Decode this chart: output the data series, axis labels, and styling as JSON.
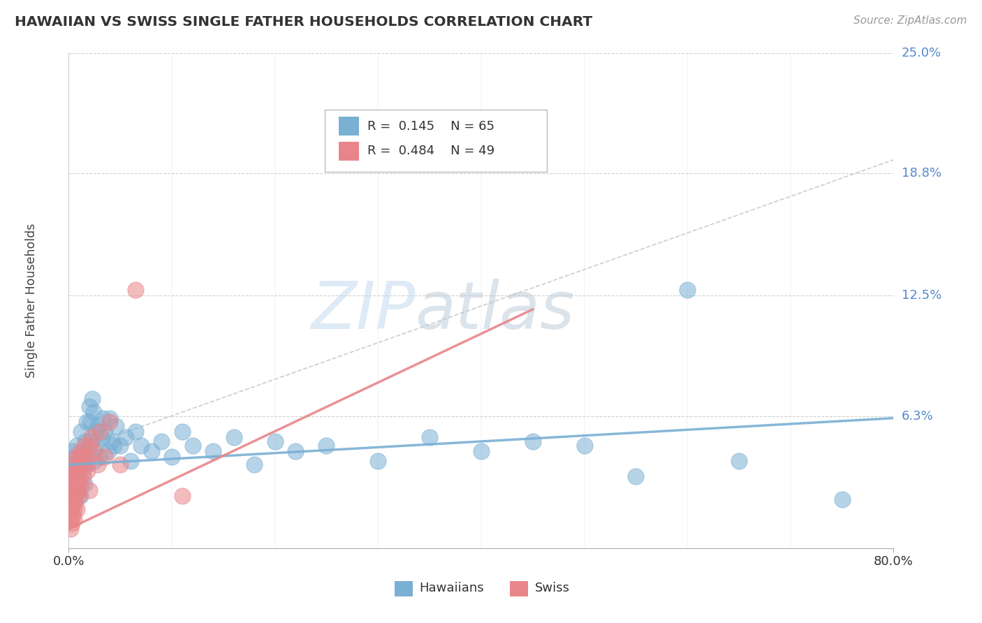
{
  "title": "HAWAIIAN VS SWISS SINGLE FATHER HOUSEHOLDS CORRELATION CHART",
  "source": "Source: ZipAtlas.com",
  "ylabel": "Single Father Households",
  "xlim": [
    0.0,
    0.8
  ],
  "ylim": [
    -0.005,
    0.25
  ],
  "ytick_vals": [
    0.0,
    0.063,
    0.125,
    0.188,
    0.25
  ],
  "ytick_labels": [
    "",
    "6.3%",
    "12.5%",
    "18.8%",
    "25.0%"
  ],
  "xtick_vals": [
    0.0,
    0.8
  ],
  "xtick_labels": [
    "0.0%",
    "80.0%"
  ],
  "hawaiian_color": "#7ab0d4",
  "swiss_color": "#e8858a",
  "hawaiian_R": 0.145,
  "hawaiian_N": 65,
  "swiss_R": 0.484,
  "swiss_N": 49,
  "background_color": "#ffffff",
  "grid_color": "#d0d0d0",
  "hawaiian_points": [
    [
      0.002,
      0.038
    ],
    [
      0.003,
      0.028
    ],
    [
      0.004,
      0.045
    ],
    [
      0.005,
      0.032
    ],
    [
      0.006,
      0.02
    ],
    [
      0.006,
      0.042
    ],
    [
      0.007,
      0.038
    ],
    [
      0.008,
      0.035
    ],
    [
      0.008,
      0.048
    ],
    [
      0.009,
      0.025
    ],
    [
      0.01,
      0.03
    ],
    [
      0.01,
      0.04
    ],
    [
      0.011,
      0.022
    ],
    [
      0.012,
      0.055
    ],
    [
      0.012,
      0.042
    ],
    [
      0.013,
      0.035
    ],
    [
      0.014,
      0.038
    ],
    [
      0.015,
      0.045
    ],
    [
      0.015,
      0.028
    ],
    [
      0.016,
      0.05
    ],
    [
      0.017,
      0.06
    ],
    [
      0.018,
      0.038
    ],
    [
      0.02,
      0.068
    ],
    [
      0.021,
      0.06
    ],
    [
      0.022,
      0.05
    ],
    [
      0.023,
      0.072
    ],
    [
      0.024,
      0.065
    ],
    [
      0.025,
      0.04
    ],
    [
      0.026,
      0.055
    ],
    [
      0.027,
      0.048
    ],
    [
      0.028,
      0.058
    ],
    [
      0.03,
      0.042
    ],
    [
      0.032,
      0.052
    ],
    [
      0.033,
      0.062
    ],
    [
      0.035,
      0.055
    ],
    [
      0.038,
      0.045
    ],
    [
      0.04,
      0.062
    ],
    [
      0.042,
      0.05
    ],
    [
      0.044,
      0.048
    ],
    [
      0.046,
      0.058
    ],
    [
      0.05,
      0.048
    ],
    [
      0.055,
      0.052
    ],
    [
      0.06,
      0.04
    ],
    [
      0.065,
      0.055
    ],
    [
      0.07,
      0.048
    ],
    [
      0.08,
      0.045
    ],
    [
      0.09,
      0.05
    ],
    [
      0.1,
      0.042
    ],
    [
      0.11,
      0.055
    ],
    [
      0.12,
      0.048
    ],
    [
      0.14,
      0.045
    ],
    [
      0.16,
      0.052
    ],
    [
      0.18,
      0.038
    ],
    [
      0.2,
      0.05
    ],
    [
      0.22,
      0.045
    ],
    [
      0.25,
      0.048
    ],
    [
      0.3,
      0.04
    ],
    [
      0.35,
      0.052
    ],
    [
      0.4,
      0.045
    ],
    [
      0.45,
      0.05
    ],
    [
      0.5,
      0.048
    ],
    [
      0.55,
      0.032
    ],
    [
      0.6,
      0.128
    ],
    [
      0.65,
      0.04
    ],
    [
      0.75,
      0.02
    ]
  ],
  "swiss_points": [
    [
      0.001,
      0.01
    ],
    [
      0.001,
      0.02
    ],
    [
      0.002,
      0.015
    ],
    [
      0.002,
      0.025
    ],
    [
      0.002,
      0.005
    ],
    [
      0.003,
      0.018
    ],
    [
      0.003,
      0.028
    ],
    [
      0.003,
      0.008
    ],
    [
      0.004,
      0.022
    ],
    [
      0.004,
      0.032
    ],
    [
      0.004,
      0.012
    ],
    [
      0.005,
      0.025
    ],
    [
      0.005,
      0.035
    ],
    [
      0.005,
      0.015
    ],
    [
      0.005,
      0.01
    ],
    [
      0.006,
      0.028
    ],
    [
      0.006,
      0.018
    ],
    [
      0.006,
      0.038
    ],
    [
      0.007,
      0.032
    ],
    [
      0.007,
      0.022
    ],
    [
      0.007,
      0.042
    ],
    [
      0.008,
      0.035
    ],
    [
      0.008,
      0.025
    ],
    [
      0.008,
      0.015
    ],
    [
      0.009,
      0.038
    ],
    [
      0.009,
      0.028
    ],
    [
      0.01,
      0.042
    ],
    [
      0.01,
      0.032
    ],
    [
      0.01,
      0.022
    ],
    [
      0.011,
      0.045
    ],
    [
      0.012,
      0.038
    ],
    [
      0.012,
      0.028
    ],
    [
      0.013,
      0.042
    ],
    [
      0.014,
      0.032
    ],
    [
      0.015,
      0.048
    ],
    [
      0.016,
      0.038
    ],
    [
      0.017,
      0.042
    ],
    [
      0.018,
      0.035
    ],
    [
      0.02,
      0.048
    ],
    [
      0.02,
      0.025
    ],
    [
      0.022,
      0.052
    ],
    [
      0.025,
      0.045
    ],
    [
      0.028,
      0.038
    ],
    [
      0.03,
      0.055
    ],
    [
      0.035,
      0.042
    ],
    [
      0.04,
      0.06
    ],
    [
      0.05,
      0.038
    ],
    [
      0.065,
      0.128
    ],
    [
      0.11,
      0.022
    ]
  ],
  "haw_line_x": [
    0.0,
    0.8
  ],
  "haw_line_y": [
    0.038,
    0.062
  ],
  "swiss_line_x": [
    0.0,
    0.45
  ],
  "swiss_line_y": [
    0.005,
    0.118
  ],
  "ref_line_x": [
    0.03,
    0.8
  ],
  "ref_line_y": [
    0.05,
    0.195
  ]
}
